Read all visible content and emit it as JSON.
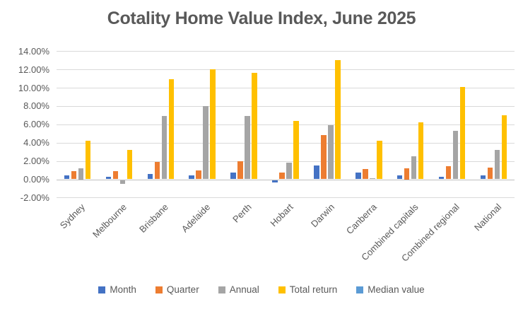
{
  "chart_data": {
    "type": "bar",
    "title": "Cotality Home Value Index, June 2025",
    "categories": [
      "Sydney",
      "Melbourne",
      "Brisbane",
      "Adelaide",
      "Perth",
      "Hobart",
      "Darwin",
      "Canberra",
      "Combined capitals",
      "Combined regional",
      "National"
    ],
    "series": [
      {
        "name": "Month",
        "color": "#4472C4",
        "values": [
          0.4,
          0.3,
          0.6,
          0.4,
          0.7,
          -0.3,
          1.5,
          0.7,
          0.4,
          0.3,
          0.4
        ]
      },
      {
        "name": "Quarter",
        "color": "#ED7D31",
        "values": [
          0.9,
          0.9,
          1.9,
          1.0,
          2.0,
          0.7,
          4.8,
          1.1,
          1.2,
          1.4,
          1.3
        ]
      },
      {
        "name": "Annual",
        "color": "#A5A5A5",
        "values": [
          1.2,
          -0.4,
          6.9,
          8.0,
          6.9,
          1.8,
          5.9,
          0.1,
          2.5,
          5.3,
          3.2
        ]
      },
      {
        "name": "Total return",
        "color": "#FFC000",
        "values": [
          4.2,
          3.2,
          10.9,
          12.0,
          11.6,
          6.4,
          13.0,
          4.2,
          6.2,
          10.1,
          7.0
        ]
      },
      {
        "name": "Median value",
        "color": "#5B9BD5",
        "values": [
          null,
          null,
          null,
          null,
          null,
          null,
          null,
          null,
          null,
          null,
          null
        ]
      }
    ],
    "unit": "%",
    "y_axis": {
      "min": -2,
      "max": 14,
      "step": 2,
      "tick_labels": [
        "14.00%",
        "12.00%",
        "10.00%",
        "8.00%",
        "6.00%",
        "4.00%",
        "2.00%",
        "0.00%",
        "-2.00%"
      ]
    },
    "grid": true,
    "legend_position": "bottom"
  },
  "style_colors": {
    "text": "#595959",
    "gridline": "#D9D9D9",
    "axis_line": "#BFBFBF",
    "background": "#FFFFFF"
  }
}
